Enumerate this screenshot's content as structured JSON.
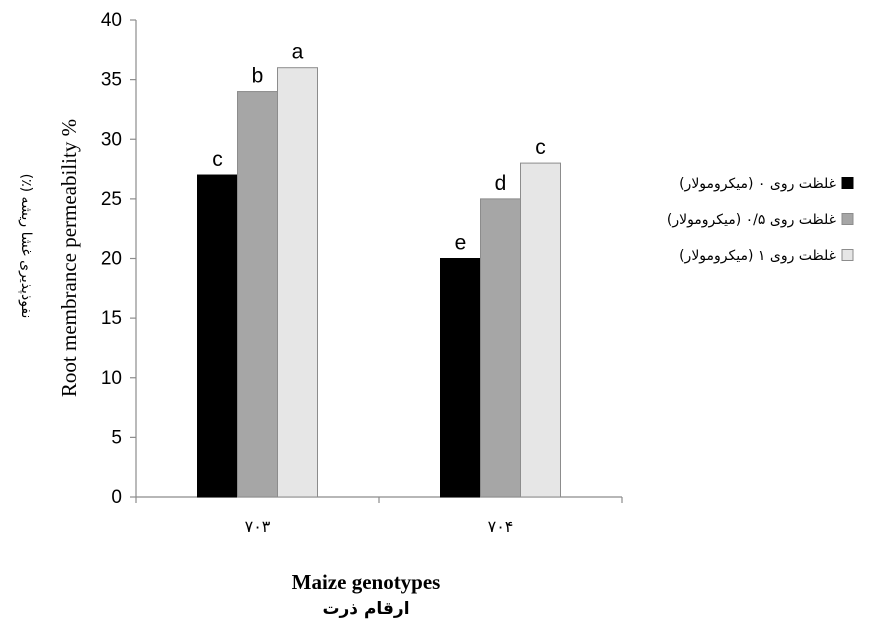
{
  "chart_data": {
    "type": "bar",
    "categories": [
      "۷۰۳",
      "۷۰۴"
    ],
    "series": [
      {
        "name": "غلظت روی ۰ (میکرومولار)",
        "color": "#000000",
        "values": [
          27,
          20
        ],
        "letters": [
          "c",
          "e"
        ]
      },
      {
        "name": "غلظت روی ۰/۵ (میکرومولار)",
        "color": "#a6a6a6",
        "values": [
          34,
          25
        ],
        "letters": [
          "b",
          "d"
        ]
      },
      {
        "name": "غلظت روی ۱ (میکرومولار)",
        "color": "#e6e6e6",
        "values": [
          36,
          28
        ],
        "letters": [
          "a",
          "c"
        ]
      }
    ],
    "ylim": [
      0,
      40
    ],
    "yticks": [
      0,
      5,
      10,
      15,
      20,
      25,
      30,
      35,
      40
    ],
    "ylabel": "Root membrance permeability %",
    "ylabel_fa": "نفوذپذیری غشا ریشه (٪)",
    "xlabel": "Maize genotypes",
    "xlabel_fa": "ارقام ذرت",
    "legend_position": "right",
    "grid": false
  }
}
